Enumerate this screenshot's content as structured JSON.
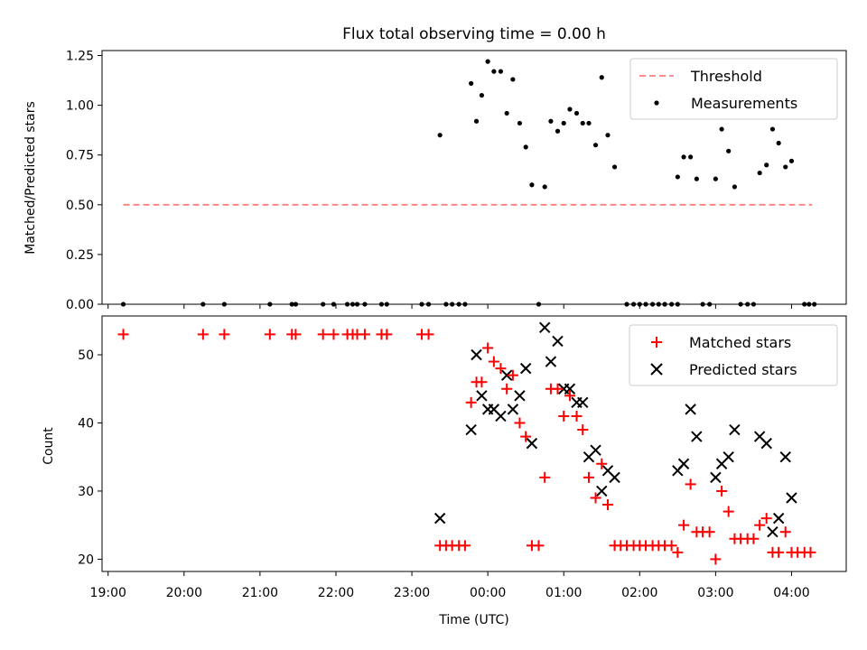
{
  "chart_data": [
    {
      "type": "scatter",
      "title": "Flux total observing time = 0.00 h",
      "xlabel": "",
      "ylabel": "Matched/Predicted stars",
      "xlim": [
        18.92,
        28.72
      ],
      "ylim": [
        0,
        1.275
      ],
      "yticks": [
        0.0,
        0.25,
        0.5,
        0.75,
        1.0,
        1.25
      ],
      "ytick_labels": [
        "0.00",
        "0.25",
        "0.50",
        "0.75",
        "1.00",
        "1.25"
      ],
      "legend_position": "upper right",
      "colors": {
        "threshold": "#ff7f7f",
        "measurements": "#000000"
      },
      "series": [
        {
          "name": "Threshold",
          "style": "dashed-line",
          "x": [
            19.2,
            28.27
          ],
          "y": [
            0.5,
            0.5
          ]
        },
        {
          "name": "Measurements",
          "style": "dot",
          "points": [
            [
              19.2,
              0
            ],
            [
              20.25,
              0
            ],
            [
              20.53,
              0
            ],
            [
              21.13,
              0
            ],
            [
              21.42,
              0
            ],
            [
              21.47,
              0
            ],
            [
              21.83,
              0
            ],
            [
              21.97,
              0
            ],
            [
              22.15,
              0
            ],
            [
              22.22,
              0
            ],
            [
              22.28,
              0
            ],
            [
              22.38,
              0
            ],
            [
              22.6,
              0
            ],
            [
              22.67,
              0
            ],
            [
              23.13,
              0
            ],
            [
              23.22,
              0
            ],
            [
              23.45,
              0
            ],
            [
              23.53,
              0
            ],
            [
              23.62,
              0
            ],
            [
              23.7,
              0
            ],
            [
              23.37,
              0.85
            ],
            [
              23.78,
              1.11
            ],
            [
              23.85,
              0.92
            ],
            [
              23.92,
              1.05
            ],
            [
              24.0,
              1.22
            ],
            [
              24.08,
              1.17
            ],
            [
              24.17,
              1.17
            ],
            [
              24.25,
              0.96
            ],
            [
              24.33,
              1.13
            ],
            [
              24.42,
              0.91
            ],
            [
              24.5,
              0.79
            ],
            [
              24.58,
              0.6
            ],
            [
              24.75,
              0.59
            ],
            [
              24.83,
              0.92
            ],
            [
              24.92,
              0.87
            ],
            [
              25.0,
              0.91
            ],
            [
              25.08,
              0.98
            ],
            [
              25.17,
              0.96
            ],
            [
              25.25,
              0.91
            ],
            [
              25.33,
              0.91
            ],
            [
              25.42,
              0.8
            ],
            [
              25.5,
              1.14
            ],
            [
              25.58,
              0.85
            ],
            [
              25.67,
              0.69
            ],
            [
              24.67,
              0
            ],
            [
              25.83,
              0
            ],
            [
              25.92,
              0
            ],
            [
              26.0,
              0
            ],
            [
              26.08,
              0
            ],
            [
              26.17,
              0
            ],
            [
              26.25,
              0
            ],
            [
              26.33,
              0
            ],
            [
              26.42,
              0
            ],
            [
              26.5,
              0
            ],
            [
              26.83,
              0
            ],
            [
              26.92,
              0
            ],
            [
              27.33,
              0
            ],
            [
              27.42,
              0
            ],
            [
              27.5,
              0
            ],
            [
              28.17,
              0
            ],
            [
              28.23,
              0
            ],
            [
              28.3,
              0
            ],
            [
              26.5,
              0.64
            ],
            [
              26.58,
              0.74
            ],
            [
              26.67,
              0.74
            ],
            [
              26.75,
              0.63
            ],
            [
              27.0,
              0.63
            ],
            [
              27.08,
              0.88
            ],
            [
              27.17,
              0.77
            ],
            [
              27.25,
              0.59
            ],
            [
              27.58,
              0.66
            ],
            [
              27.67,
              0.7
            ],
            [
              27.75,
              0.88
            ],
            [
              27.83,
              0.81
            ],
            [
              27.92,
              0.69
            ],
            [
              28.0,
              0.72
            ]
          ]
        }
      ]
    },
    {
      "type": "scatter",
      "title": "",
      "xlabel": "Time (UTC)",
      "ylabel": "Count",
      "xlim": [
        18.92,
        28.72
      ],
      "ylim": [
        18.2,
        55.7
      ],
      "yticks": [
        20,
        30,
        40,
        50
      ],
      "ytick_labels": [
        "20",
        "30",
        "40",
        "50"
      ],
      "xticks": [
        19,
        20,
        21,
        22,
        23,
        24,
        25,
        26,
        27,
        28
      ],
      "xtick_labels": [
        "19:00",
        "20:00",
        "21:00",
        "22:00",
        "23:00",
        "00:00",
        "01:00",
        "02:00",
        "03:00",
        "04:00"
      ],
      "legend_position": "upper right",
      "colors": {
        "matched": "#ff0000",
        "predicted": "#000000"
      },
      "series": [
        {
          "name": "Matched stars",
          "style": "plus",
          "points": [
            [
              19.2,
              53
            ],
            [
              20.25,
              53
            ],
            [
              20.53,
              53
            ],
            [
              21.13,
              53
            ],
            [
              21.42,
              53
            ],
            [
              21.47,
              53
            ],
            [
              21.83,
              53
            ],
            [
              21.97,
              53
            ],
            [
              22.15,
              53
            ],
            [
              22.22,
              53
            ],
            [
              22.28,
              53
            ],
            [
              22.38,
              53
            ],
            [
              22.6,
              53
            ],
            [
              22.67,
              53
            ],
            [
              23.13,
              53
            ],
            [
              23.22,
              53
            ],
            [
              23.37,
              22
            ],
            [
              23.45,
              22
            ],
            [
              23.53,
              22
            ],
            [
              23.62,
              22
            ],
            [
              23.7,
              22
            ],
            [
              23.78,
              43
            ],
            [
              23.85,
              46
            ],
            [
              23.92,
              46
            ],
            [
              24.0,
              51
            ],
            [
              24.08,
              49
            ],
            [
              24.17,
              48
            ],
            [
              24.25,
              45
            ],
            [
              24.33,
              47
            ],
            [
              24.42,
              40
            ],
            [
              24.5,
              38
            ],
            [
              24.58,
              22
            ],
            [
              24.67,
              22
            ],
            [
              24.75,
              32
            ],
            [
              24.83,
              45
            ],
            [
              24.92,
              45
            ],
            [
              25.0,
              41
            ],
            [
              25.08,
              44
            ],
            [
              25.17,
              41
            ],
            [
              25.25,
              39
            ],
            [
              25.33,
              32
            ],
            [
              25.42,
              29
            ],
            [
              25.5,
              34
            ],
            [
              25.58,
              28
            ],
            [
              25.67,
              22
            ],
            [
              25.75,
              22
            ],
            [
              25.83,
              22
            ],
            [
              25.92,
              22
            ],
            [
              26.0,
              22
            ],
            [
              26.08,
              22
            ],
            [
              26.17,
              22
            ],
            [
              26.25,
              22
            ],
            [
              26.33,
              22
            ],
            [
              26.42,
              22
            ],
            [
              26.5,
              21
            ],
            [
              26.58,
              25
            ],
            [
              26.67,
              31
            ],
            [
              26.75,
              24
            ],
            [
              26.83,
              24
            ],
            [
              26.92,
              24
            ],
            [
              27.0,
              20
            ],
            [
              27.08,
              30
            ],
            [
              27.17,
              27
            ],
            [
              27.25,
              23
            ],
            [
              27.33,
              23
            ],
            [
              27.42,
              23
            ],
            [
              27.5,
              23
            ],
            [
              27.58,
              25
            ],
            [
              27.67,
              26
            ],
            [
              27.75,
              21
            ],
            [
              27.83,
              21
            ],
            [
              27.92,
              24
            ],
            [
              28.0,
              21
            ],
            [
              28.08,
              21
            ],
            [
              28.17,
              21
            ],
            [
              28.25,
              21
            ]
          ]
        },
        {
          "name": "Predicted stars",
          "style": "x",
          "points": [
            [
              23.37,
              26
            ],
            [
              23.78,
              39
            ],
            [
              23.85,
              50
            ],
            [
              23.92,
              44
            ],
            [
              24.0,
              42
            ],
            [
              24.08,
              42
            ],
            [
              24.17,
              41
            ],
            [
              24.25,
              47
            ],
            [
              24.33,
              42
            ],
            [
              24.42,
              44
            ],
            [
              24.5,
              48
            ],
            [
              24.58,
              37
            ],
            [
              24.75,
              54
            ],
            [
              24.83,
              49
            ],
            [
              24.92,
              52
            ],
            [
              25.0,
              45
            ],
            [
              25.08,
              45
            ],
            [
              25.17,
              43
            ],
            [
              25.25,
              43
            ],
            [
              25.33,
              35
            ],
            [
              25.42,
              36
            ],
            [
              25.5,
              30
            ],
            [
              25.58,
              33
            ],
            [
              25.67,
              32
            ],
            [
              26.5,
              33
            ],
            [
              26.58,
              34
            ],
            [
              26.67,
              42
            ],
            [
              26.75,
              38
            ],
            [
              27.0,
              32
            ],
            [
              27.08,
              34
            ],
            [
              27.17,
              35
            ],
            [
              27.25,
              39
            ],
            [
              27.58,
              38
            ],
            [
              27.67,
              37
            ],
            [
              27.75,
              24
            ],
            [
              27.83,
              26
            ],
            [
              27.92,
              35
            ],
            [
              28.0,
              29
            ]
          ]
        }
      ]
    }
  ]
}
